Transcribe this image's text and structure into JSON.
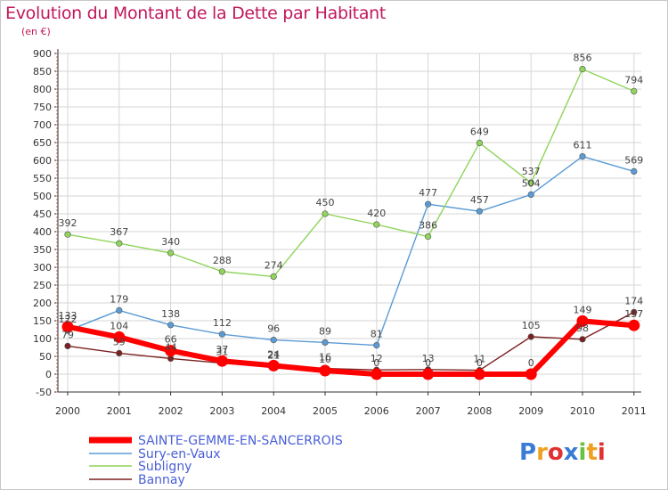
{
  "chart_data": {
    "type": "line",
    "title": "Evolution du Montant de la Dette par Habitant",
    "subtitle": "(en €)",
    "xlabel": "",
    "ylabel": "",
    "ylim": [
      -50,
      900
    ],
    "yticks": [
      -50,
      0,
      50,
      100,
      150,
      200,
      250,
      300,
      350,
      400,
      450,
      500,
      550,
      600,
      650,
      700,
      750,
      800,
      850,
      900
    ],
    "categories": [
      "2000",
      "2001",
      "2002",
      "2003",
      "2004",
      "2005",
      "2006",
      "2007",
      "2008",
      "2009",
      "2010",
      "2011"
    ],
    "grid": true,
    "legend_position": "bottom-left",
    "series": [
      {
        "name": "SAINTE-GEMME-EN-SANCERROIS",
        "color": "#ff0000",
        "labels": true,
        "values": [
          133,
          104,
          66,
          37,
          24,
          10,
          0,
          0,
          0,
          0,
          149,
          137
        ]
      },
      {
        "name": "Sury-en-Vaux",
        "color": "#5b9bd5",
        "labels": true,
        "values": [
          122,
          179,
          138,
          112,
          96,
          89,
          81,
          477,
          457,
          504,
          611,
          569
        ]
      },
      {
        "name": "Subligny",
        "color": "#8fd45b",
        "labels": true,
        "values": [
          392,
          367,
          340,
          288,
          274,
          450,
          420,
          386,
          649,
          537,
          856,
          794
        ]
      },
      {
        "name": "Bannay",
        "color": "#7b2020",
        "labels": true,
        "values": [
          79,
          59,
          44,
          31,
          21,
          16,
          12,
          13,
          11,
          105,
          98,
          174
        ]
      }
    ]
  },
  "logo": {
    "text": "Proxiti"
  }
}
